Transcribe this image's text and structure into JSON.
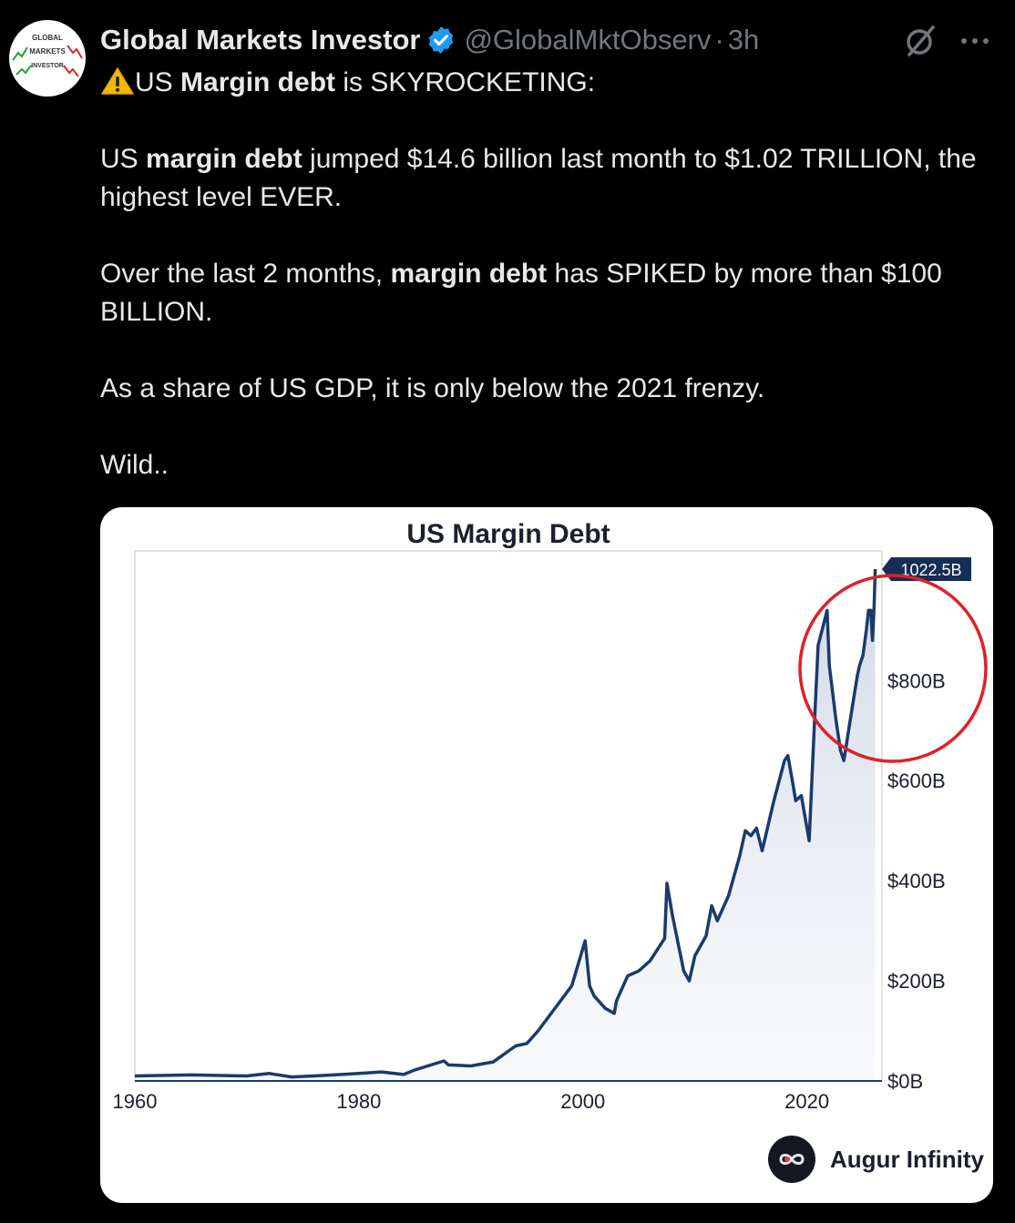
{
  "author": {
    "name": "Global Markets Investor",
    "handle": "@GlobalMktObserv",
    "time": "3h",
    "avatar_lines": [
      "GLOBAL",
      "MARKETS",
      "INVESTOR"
    ]
  },
  "icons": {
    "verified": "verified-badge-icon",
    "grok": "grok-icon",
    "more": "more-icon",
    "warning": "warning-icon"
  },
  "colors": {
    "background": "#000000",
    "text": "#e7e9ea",
    "muted": "#71767b",
    "verified": "#1d9bf0",
    "line": "#1b3a6b",
    "circle": "#e0202a"
  },
  "tweet": {
    "line1_pre": "US ",
    "line1_bold": "Margin debt",
    "line1_post": " is SKYROCKETING:",
    "p1_pre": "US ",
    "p1_bold": "margin debt",
    "p1_post": " jumped $14.6 billion last month to $1.02 TRILLION, the highest level EVER.",
    "p2_pre": "Over the last 2 months, ",
    "p2_bold": "margin debt",
    "p2_post": " has SPIKED by more than $100 BILLION.",
    "p3": "As a share of US GDP, it is only below the 2021 frenzy.",
    "p4": "Wild.."
  },
  "brand": {
    "name": "Augur Infinity"
  },
  "chart_data": {
    "type": "area",
    "title": "US Margin Debt",
    "xlabel": "",
    "ylabel": "",
    "xlim": [
      1960,
      2026.7
    ],
    "ylim": [
      0,
      1022.5
    ],
    "x_ticks": [
      1960,
      1980,
      2000,
      2020
    ],
    "x_tick_labels": [
      "1960",
      "1980",
      "2000",
      "2020"
    ],
    "y_ticks": [
      0,
      200,
      400,
      600,
      800
    ],
    "y_tick_labels": [
      "$0B",
      "$200B",
      "$400B",
      "$600B",
      "$800B"
    ],
    "last_value_label": "1022.5B",
    "grid": false,
    "series": [
      {
        "name": "",
        "x": [
          1960,
          1965,
          1970,
          1972,
          1974,
          1976,
          1980,
          1982,
          1984,
          1985,
          1987.6,
          1988,
          1990,
          1992,
          1994,
          1995,
          1996,
          1997,
          1998,
          1999,
          2000.2,
          2000.6,
          2001,
          2002,
          2002.8,
          2003,
          2004,
          2005,
          2006,
          2007.3,
          2007.5,
          2008,
          2009,
          2009.5,
          2010,
          2011,
          2011.5,
          2012,
          2013,
          2014,
          2014.5,
          2015,
          2015.5,
          2016,
          2017,
          2018,
          2018.3,
          2018.7,
          2019,
          2019.5,
          2020.2,
          2020.6,
          2021,
          2021.8,
          2022,
          2022.6,
          2023,
          2023.3,
          2024,
          2024.5,
          2024.7,
          2025,
          2025.3,
          2025.5,
          2025.7,
          2025.85,
          2026.0,
          2026.1
        ],
        "y": [
          10,
          12,
          10,
          15,
          8,
          10,
          15,
          18,
          13,
          22,
          40,
          32,
          30,
          38,
          70,
          75,
          100,
          130,
          160,
          190,
          280,
          190,
          170,
          145,
          135,
          160,
          210,
          220,
          240,
          285,
          395,
          330,
          220,
          200,
          250,
          290,
          350,
          320,
          370,
          450,
          500,
          490,
          505,
          460,
          555,
          640,
          650,
          600,
          560,
          570,
          480,
          680,
          870,
          940,
          830,
          720,
          660,
          640,
          740,
          810,
          830,
          850,
          900,
          940,
          940,
          880,
          950,
          1022.5
        ]
      }
    ]
  }
}
